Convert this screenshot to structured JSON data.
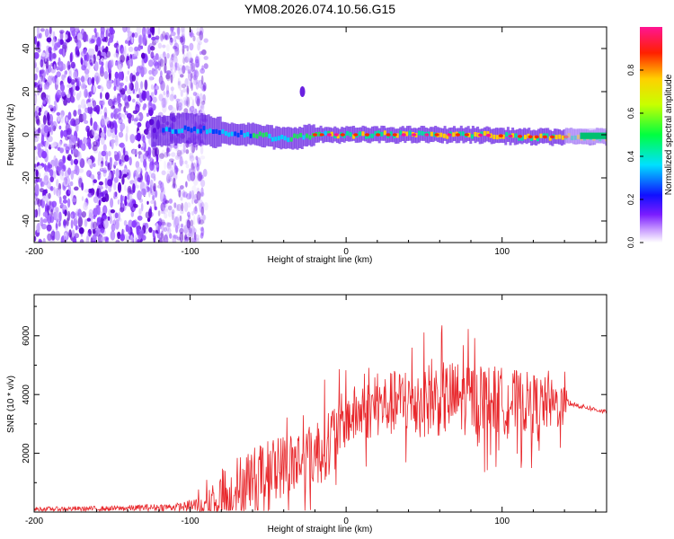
{
  "figure": {
    "title": "YM08.2026.074.10.56.G15"
  },
  "chart_data": [
    {
      "type": "heatmap",
      "name": "spectrogram",
      "xlabel": "Height of straight line (km)",
      "ylabel": "Frequency (Hz)",
      "xlim": [
        -200,
        167
      ],
      "ylim": [
        -50,
        50
      ],
      "x_ticks": [
        -200,
        -100,
        0,
        100
      ],
      "y_ticks": [
        -40,
        -20,
        0,
        20,
        40
      ],
      "ridge": {
        "description_points_x": [
          -120,
          -100,
          -90,
          -80,
          -60,
          -40,
          -20,
          0,
          40,
          80,
          120,
          167
        ],
        "description_points_freq": [
          2,
          3,
          2,
          1,
          0,
          -2,
          0,
          0,
          0,
          0,
          -1,
          -1
        ]
      },
      "noise_region_x_end": -93,
      "secondary_blob": {
        "x": -28,
        "freq": 20
      },
      "colorbar": {
        "label": "Normalized spectral amplitude",
        "ticks": [
          0.0,
          0.2,
          0.4,
          0.6,
          0.8
        ],
        "range": [
          0,
          1
        ],
        "colors": [
          "#ffffff",
          "#9b30ff",
          "#0000ff",
          "#00e5ff",
          "#00ff00",
          "#ffff00",
          "#ff0000",
          "#ff1493"
        ]
      }
    },
    {
      "type": "line",
      "name": "snr",
      "xlabel": "Height of straight line (km)",
      "ylabel": "SNR (10 * v/v)",
      "xlim": [
        -200,
        167
      ],
      "ylim": [
        0,
        7400
      ],
      "x_ticks": [
        -200,
        -100,
        0,
        100
      ],
      "y_ticks": [
        2000,
        4000,
        6000
      ],
      "color": "#e8282c",
      "envelope": {
        "x": [
          -200,
          -150,
          -105,
          -90,
          -80,
          -60,
          -40,
          -20,
          -10,
          0,
          20,
          40,
          60,
          80,
          100,
          120,
          140,
          143,
          167
        ],
        "base": [
          100,
          120,
          180,
          250,
          700,
          1300,
          1700,
          2100,
          2600,
          3300,
          3700,
          3900,
          4000,
          4000,
          3900,
          3800,
          3700,
          3700,
          3400
        ],
        "amp": [
          150,
          180,
          280,
          900,
          1800,
          1900,
          2000,
          2200,
          2200,
          1800,
          1900,
          2200,
          2400,
          2300,
          2100,
          1900,
          1400,
          200,
          150
        ]
      }
    }
  ]
}
